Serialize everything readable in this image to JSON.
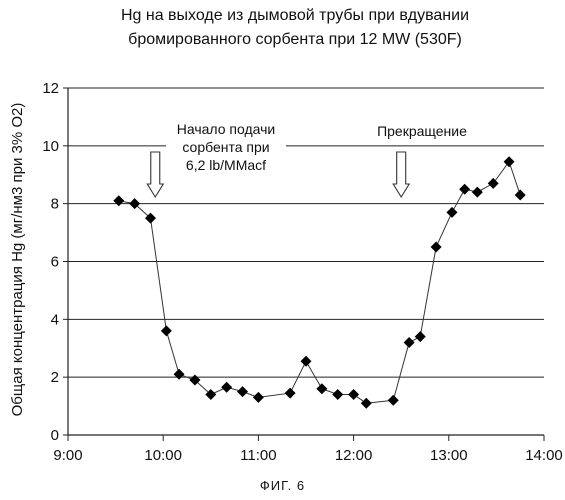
{
  "chart_title_line1": "Hg на выходе из дымовой трубы при вдувании",
  "chart_title_line2": "бромированного сорбента при 12 MW (530F)",
  "figure_caption": "ФИГ. 6",
  "chart_data": {
    "type": "line",
    "title": "Hg на выходе из дымовой трубы при вдувании бромированного сорбента при 12 MW (530F)",
    "ylabel": "Общая концентрация Hg (мг/нм3 при 3% O2)",
    "xlabel": "",
    "ylim": [
      0,
      12
    ],
    "yticks": [
      0,
      2,
      4,
      6,
      8,
      10,
      12
    ],
    "xlim": [
      "9:00",
      "14:00"
    ],
    "xticks": [
      "9:00",
      "10:00",
      "11:00",
      "12:00",
      "13:00",
      "14:00"
    ],
    "grid": "horizontal",
    "marker": "diamond",
    "series": [
      {
        "x": [
          "9:32",
          "9:42",
          "9:52",
          "10:02",
          "10:10",
          "10:20",
          "10:30",
          "10:40",
          "10:50",
          "11:00",
          "11:20",
          "11:30",
          "11:40",
          "11:50",
          "12:00",
          "12:08",
          "12:25",
          "12:35",
          "12:42",
          "12:52",
          "13:02",
          "13:10",
          "13:18",
          "13:28",
          "13:38",
          "13:45"
        ],
        "values": [
          8.1,
          8.0,
          7.5,
          3.6,
          2.1,
          1.9,
          1.4,
          1.65,
          1.5,
          1.3,
          1.45,
          2.55,
          1.6,
          1.4,
          1.4,
          1.1,
          1.2,
          3.2,
          3.4,
          6.5,
          7.7,
          8.5,
          8.4,
          8.7,
          9.45,
          8.3
        ]
      }
    ],
    "annotations": [
      {
        "lines": [
          "Начало подачи",
          "сорбента при",
          "6,2 lb/MMacf"
        ],
        "arrow_x": "9:55"
      },
      {
        "lines": [
          "Прекращение"
        ],
        "arrow_x": "12:30"
      }
    ]
  }
}
